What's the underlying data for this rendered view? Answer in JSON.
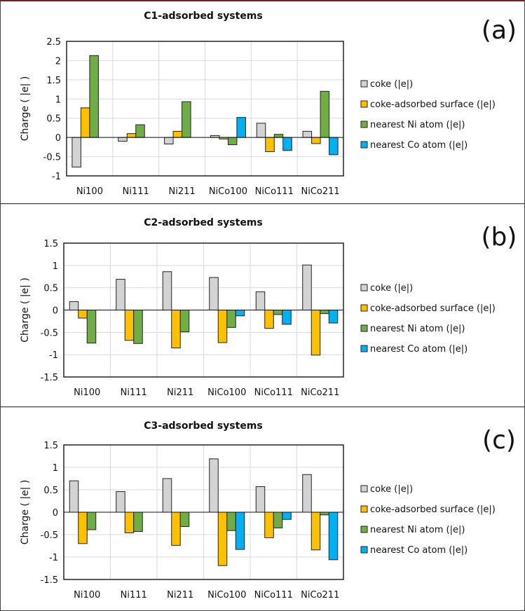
{
  "chart_data": [
    {
      "type": "bar",
      "panel_label": "(a)",
      "title": "C1-adsorbed systems",
      "ylabel": "Charge ( |e| )",
      "xlabel": "",
      "ylim": [
        -1,
        2.5
      ],
      "yticks": [
        -1,
        -0.5,
        0,
        0.5,
        1,
        1.5,
        2,
        2.5
      ],
      "grid": true,
      "legend": "right",
      "categories": [
        "Ni100",
        "Ni111",
        "Ni211",
        "NiCo100",
        "NiCo111",
        "NiCo211"
      ],
      "series": [
        {
          "name": "coke (|e|)",
          "color": "#d3d3d3",
          "values": [
            -0.77,
            -0.1,
            -0.17,
            0.05,
            0.37,
            0.16
          ]
        },
        {
          "name": "coke-adsorbed surface (|e|)",
          "color": "#ffc000",
          "values": [
            0.77,
            0.1,
            0.16,
            -0.04,
            -0.37,
            -0.16
          ]
        },
        {
          "name": "nearest Ni atom (|e|)",
          "color": "#70ad47",
          "values": [
            2.13,
            0.33,
            0.93,
            -0.19,
            0.08,
            1.2
          ]
        },
        {
          "name": "nearest Co atom (|e|)",
          "color": "#00b0f0",
          "values": [
            null,
            null,
            null,
            0.52,
            -0.34,
            -0.45
          ]
        }
      ]
    },
    {
      "type": "bar",
      "panel_label": "(b)",
      "title": "C2-adsorbed systems",
      "ylabel": "Charge ( |e| )",
      "xlabel": "",
      "ylim": [
        -1.5,
        1.5
      ],
      "yticks": [
        -1.5,
        -1,
        -0.5,
        0,
        0.5,
        1,
        1.5
      ],
      "grid": true,
      "legend": "right",
      "categories": [
        "Ni100",
        "Ni111",
        "Ni211",
        "NiCo100",
        "NiCo111",
        "NiCo211"
      ],
      "series": [
        {
          "name": "coke (|e|)",
          "color": "#d3d3d3",
          "values": [
            0.19,
            0.69,
            0.86,
            0.73,
            0.41,
            1.01
          ]
        },
        {
          "name": "coke-adsorbed surface (|e|)",
          "color": "#ffc000",
          "values": [
            -0.18,
            -0.68,
            -0.85,
            -0.73,
            -0.41,
            -1.01
          ]
        },
        {
          "name": "nearest Ni atom (|e|)",
          "color": "#70ad47",
          "values": [
            -0.74,
            -0.75,
            -0.49,
            -0.39,
            -0.1,
            -0.08
          ]
        },
        {
          "name": "nearest Co atom (|e|)",
          "color": "#00b0f0",
          "values": [
            null,
            null,
            null,
            -0.13,
            -0.32,
            -0.29
          ]
        }
      ]
    },
    {
      "type": "bar",
      "panel_label": "(c)",
      "title": "C3-adsorbed systems",
      "ylabel": "Charge ( |e| )",
      "xlabel": "",
      "ylim": [
        -1.5,
        1.5
      ],
      "yticks": [
        -1.5,
        -1,
        -0.5,
        0,
        0.5,
        1,
        1.5
      ],
      "grid": true,
      "legend": "right",
      "categories": [
        "Ni100",
        "Ni111",
        "Ni211",
        "NiCo100",
        "NiCo111",
        "NiCo211"
      ],
      "series": [
        {
          "name": "coke (|e|)",
          "color": "#d3d3d3",
          "values": [
            0.7,
            0.46,
            0.75,
            1.19,
            0.57,
            0.84
          ]
        },
        {
          "name": "coke-adsorbed surface (|e|)",
          "color": "#ffc000",
          "values": [
            -0.7,
            -0.46,
            -0.74,
            -1.19,
            -0.57,
            -0.84
          ]
        },
        {
          "name": "nearest Ni atom (|e|)",
          "color": "#70ad47",
          "values": [
            -0.39,
            -0.43,
            -0.32,
            -0.41,
            -0.35,
            -0.06
          ]
        },
        {
          "name": "nearest Co atom (|e|)",
          "color": "#00b0f0",
          "values": [
            null,
            null,
            null,
            -0.83,
            -0.16,
            -1.06
          ]
        }
      ]
    }
  ]
}
